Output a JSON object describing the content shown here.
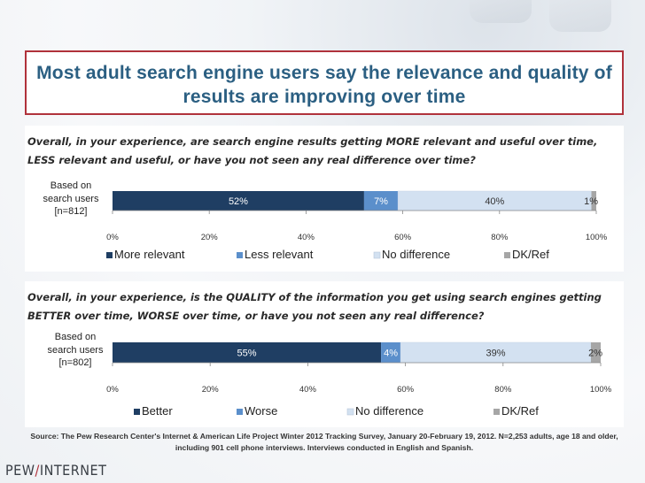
{
  "title": "Most adult search engine users say the relevance and quality of results are improving over time",
  "questions": [
    "Overall, in your experience, are search engine results getting MORE relevant and useful over time, LESS relevant and useful, or have you not seen any real difference over time?",
    "Overall, in your experience, is the QUALITY of the information you get using search engines getting BETTER over time, WORSE over time, or have you not seen any real difference?"
  ],
  "source": "Source: The Pew Research Center's Internet & American Life Project Winter 2012 Tracking Survey, January 20-February 19, 2012. N=2,253 adults, age 18 and older, including 901 cell phone interviews. Interviews conducted in English and Spanish.",
  "logo": {
    "part1": "PEW",
    "slash": "/",
    "part2": "INTERNET"
  },
  "colors": {
    "series1": "#1f3e63",
    "series2": "#5b8fcb",
    "series3": "#d3e1f1",
    "series4": "#a6a6a6",
    "accent": "#b0323b",
    "title": "#2b5f82"
  },
  "chart_data": [
    {
      "type": "bar",
      "orientation": "horizontal-stacked",
      "categories": [
        "Based on search users [n=812]"
      ],
      "category_lines": [
        "Based on",
        "search users",
        "[n=812]"
      ],
      "series": [
        {
          "name": "More relevant",
          "values": [
            52
          ],
          "label": "52%"
        },
        {
          "name": "Less relevant",
          "values": [
            7
          ],
          "label": "7%"
        },
        {
          "name": "No difference",
          "values": [
            40
          ],
          "label": "40%"
        },
        {
          "name": "DK/Ref",
          "values": [
            1
          ],
          "label": "1%"
        }
      ],
      "xticks": [
        "0%",
        "20%",
        "40%",
        "60%",
        "80%",
        "100%"
      ],
      "xlim": [
        0,
        100
      ],
      "legend": "bottom"
    },
    {
      "type": "bar",
      "orientation": "horizontal-stacked",
      "categories": [
        "Based on search users [n=802]"
      ],
      "category_lines": [
        "Based on",
        "search users",
        "[n=802]"
      ],
      "series": [
        {
          "name": "Better",
          "values": [
            55
          ],
          "label": "55%"
        },
        {
          "name": "Worse",
          "values": [
            4
          ],
          "label": "4%"
        },
        {
          "name": "No difference",
          "values": [
            39
          ],
          "label": "39%"
        },
        {
          "name": "DK/Ref",
          "values": [
            2
          ],
          "label": "2%"
        }
      ],
      "xticks": [
        "0%",
        "20%",
        "40%",
        "60%",
        "80%",
        "100%"
      ],
      "xlim": [
        0,
        100
      ],
      "legend": "bottom"
    }
  ]
}
